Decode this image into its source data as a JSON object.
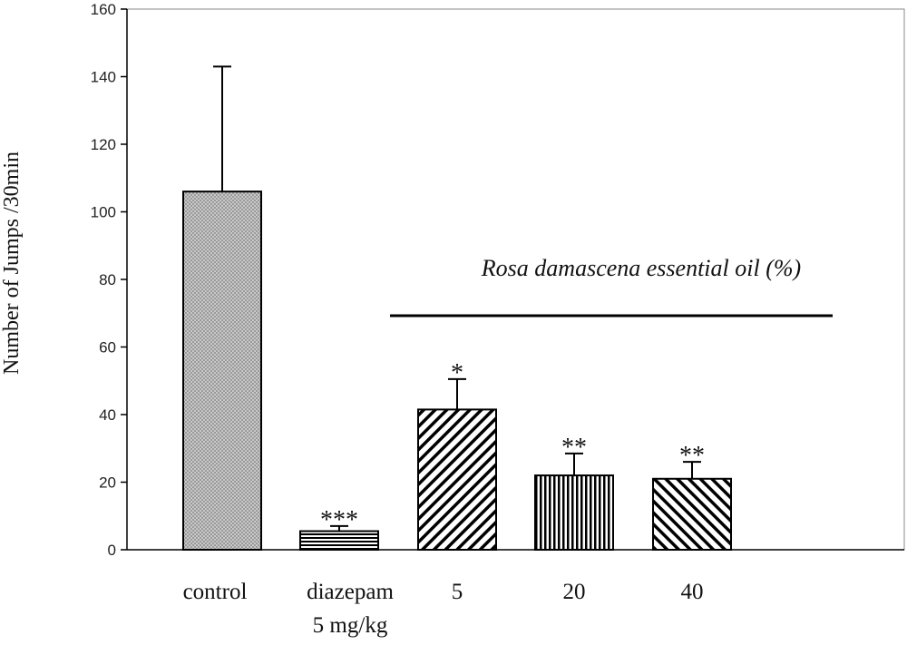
{
  "chart_data": {
    "type": "bar",
    "ylabel": "Number of Jumps /30min",
    "ylim": [
      0,
      160
    ],
    "yticks": [
      0,
      20,
      40,
      60,
      80,
      100,
      120,
      140,
      160
    ],
    "grid": false,
    "legend": "none",
    "group_label": "Rosa damascena essential oil (%)",
    "categories": [
      {
        "label": "control",
        "sublabel": ""
      },
      {
        "label": "diazepam",
        "sublabel": "5 mg/kg"
      },
      {
        "label": "5",
        "sublabel": ""
      },
      {
        "label": "20",
        "sublabel": ""
      },
      {
        "label": "40",
        "sublabel": ""
      }
    ],
    "values": [
      106,
      5.5,
      41.5,
      22,
      21
    ],
    "errors": [
      37,
      1.5,
      9,
      6.5,
      5
    ],
    "significance": [
      "",
      "***",
      "*",
      "**",
      "**"
    ],
    "patterns": [
      "dots",
      "horizontal-lines",
      "diagonal-lines",
      "vertical-lines",
      "diagonal-lines-reverse"
    ],
    "colors": {
      "stroke": "#000000",
      "fill": "#bdbdbd"
    }
  }
}
